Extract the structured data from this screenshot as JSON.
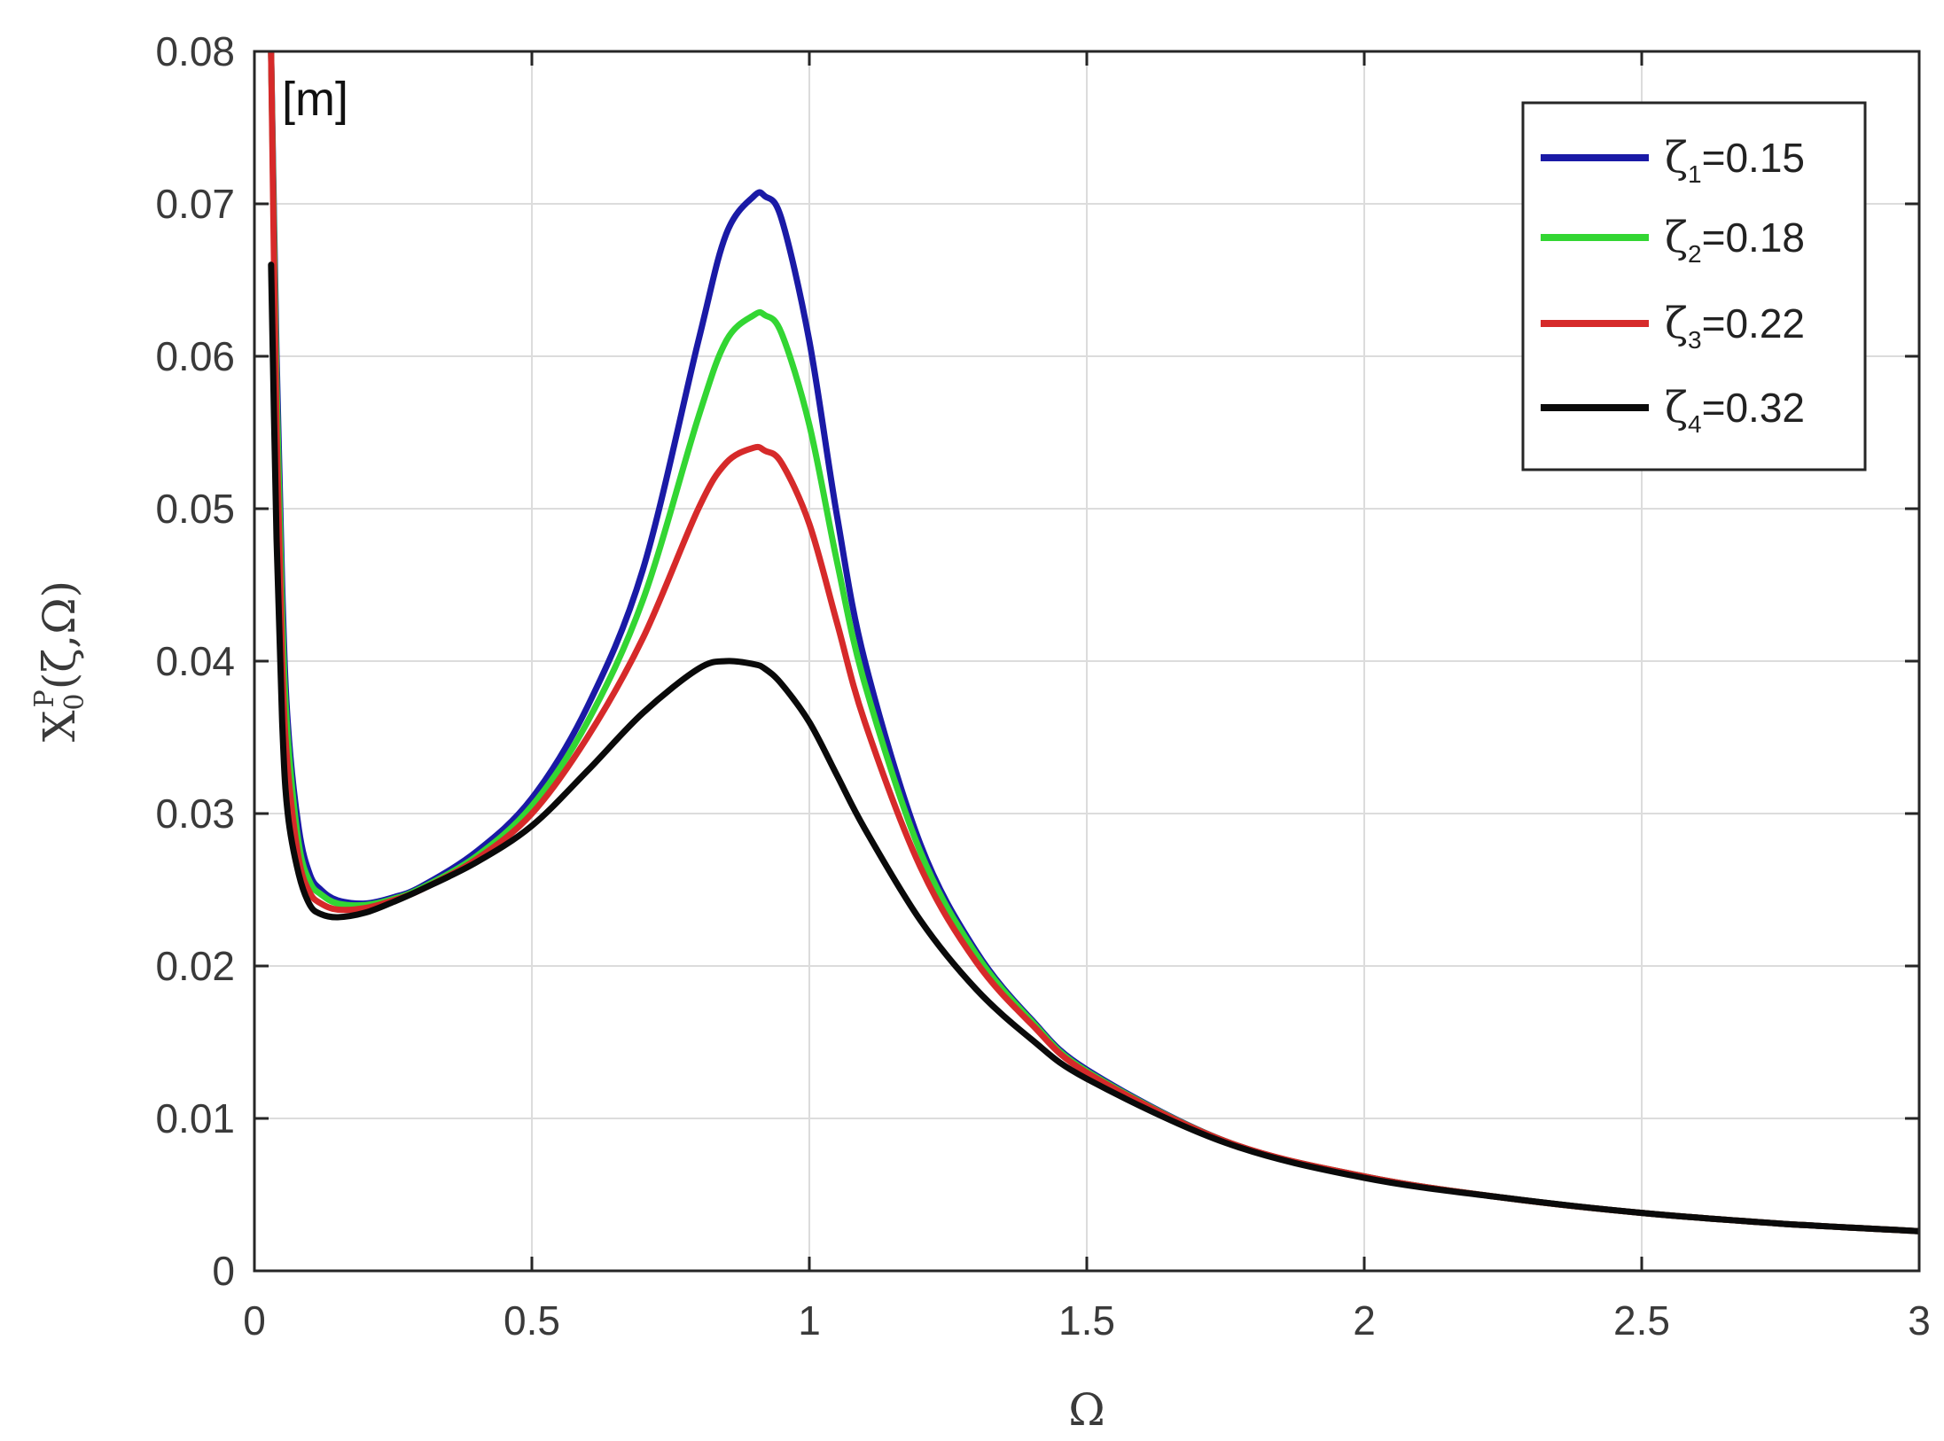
{
  "chart_data": {
    "type": "line",
    "title": "",
    "xlabel": "Ω",
    "ylabel": {
      "base": "X",
      "sub": "0",
      "sup": "P",
      "args": "(ζ,Ω)"
    },
    "unit_annotation": "[m]",
    "xlim": [
      0,
      3
    ],
    "ylim": [
      0,
      0.08
    ],
    "x_ticks": [
      "0",
      "0.5",
      "1",
      "1.5",
      "2",
      "2.5",
      "3"
    ],
    "y_ticks": [
      "0",
      "0.01",
      "0.02",
      "0.03",
      "0.04",
      "0.05",
      "0.06",
      "0.07",
      "0.08"
    ],
    "grid": true,
    "legend_position": "top-right",
    "x": [
      0.03,
      0.04,
      0.05,
      0.06,
      0.08,
      0.1,
      0.12,
      0.15,
      0.2,
      0.25,
      0.3,
      0.4,
      0.5,
      0.6,
      0.7,
      0.8,
      0.85,
      0.9,
      0.92,
      0.95,
      1.0,
      1.05,
      1.1,
      1.2,
      1.3,
      1.4,
      1.5,
      1.75,
      2.0,
      2.25,
      2.5,
      2.75,
      3.0
    ],
    "series": [
      {
        "name_symbol": "ζ",
        "name_sub": "1",
        "name_value": "=0.15",
        "color": "#1a1aa6",
        "values": [
          0.08,
          0.06,
          0.045,
          0.036,
          0.029,
          0.026,
          0.025,
          0.0243,
          0.0241,
          0.0245,
          0.0252,
          0.0275,
          0.031,
          0.037,
          0.046,
          0.061,
          0.068,
          0.0705,
          0.0705,
          0.069,
          0.061,
          0.0495,
          0.04,
          0.028,
          0.021,
          0.0165,
          0.0132,
          0.0085,
          0.0062,
          0.0048,
          0.0038,
          0.0031,
          0.0026
        ]
      },
      {
        "name_symbol": "ζ",
        "name_sub": "2",
        "name_value": "=0.18",
        "color": "#33d633",
        "values": [
          0.08,
          0.058,
          0.043,
          0.035,
          0.028,
          0.0255,
          0.0247,
          0.0241,
          0.024,
          0.0244,
          0.0251,
          0.0272,
          0.0305,
          0.036,
          0.044,
          0.056,
          0.061,
          0.0627,
          0.0627,
          0.0615,
          0.0555,
          0.0465,
          0.0385,
          0.0275,
          0.0208,
          0.0164,
          0.0131,
          0.0085,
          0.0062,
          0.0048,
          0.0038,
          0.0031,
          0.0026
        ]
      },
      {
        "name_symbol": "ζ",
        "name_sub": "3",
        "name_value": "=0.22",
        "color": "#d62a2a",
        "values": [
          0.08,
          0.055,
          0.04,
          0.033,
          0.027,
          0.0248,
          0.0241,
          0.0237,
          0.0238,
          0.0243,
          0.025,
          0.027,
          0.03,
          0.035,
          0.0415,
          0.05,
          0.053,
          0.054,
          0.0538,
          0.053,
          0.049,
          0.0425,
          0.036,
          0.0265,
          0.0203,
          0.0162,
          0.013,
          0.0085,
          0.0062,
          0.0048,
          0.0038,
          0.0031,
          0.0026
        ]
      },
      {
        "name_symbol": "ζ",
        "name_sub": "4",
        "name_value": "=0.32",
        "color": "#0a0a0a",
        "values": [
          0.066,
          0.048,
          0.036,
          0.03,
          0.026,
          0.024,
          0.0234,
          0.0232,
          0.0235,
          0.0242,
          0.025,
          0.0268,
          0.0292,
          0.0328,
          0.0366,
          0.0395,
          0.04,
          0.0398,
          0.0395,
          0.0385,
          0.036,
          0.0325,
          0.029,
          0.023,
          0.0185,
          0.0152,
          0.0126,
          0.0084,
          0.0061,
          0.0048,
          0.0038,
          0.0031,
          0.0026
        ]
      }
    ]
  }
}
